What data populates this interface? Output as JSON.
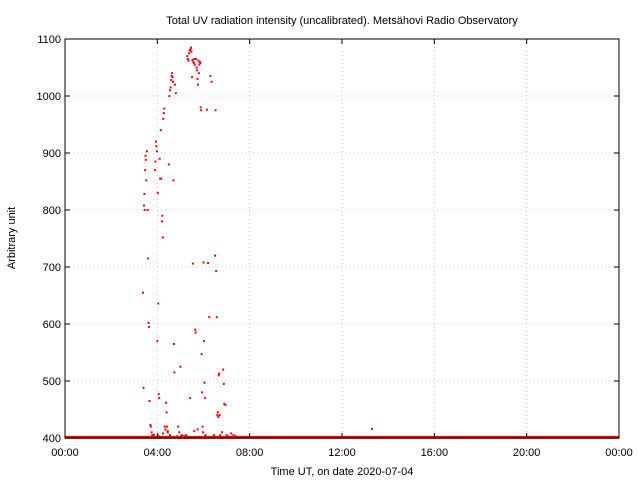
{
  "chart_data": {
    "type": "scatter",
    "title": "Total UV radiation intensity (uncalibrated). Metsähovi Radio Observatory",
    "xlabel": "Time UT, on date 2020-07-04",
    "ylabel": "Arbitrary unit",
    "x_unit": "hours",
    "xlim": [
      0,
      24
    ],
    "ylim": [
      400,
      1100
    ],
    "x_tick_labels": [
      "00:00",
      "04:00",
      "08:00",
      "12:00",
      "16:00",
      "20:00",
      "00:00"
    ],
    "y_ticks": [
      400,
      500,
      600,
      700,
      800,
      900,
      1000,
      1100
    ],
    "grid": true,
    "legend": "none",
    "color": "#ff0000",
    "baseline": {
      "value": 401,
      "from_hour": 0,
      "to_hour": 24
    },
    "points": [
      [
        3.38,
        655
      ],
      [
        3.4,
        488
      ],
      [
        3.42,
        808
      ],
      [
        3.44,
        828
      ],
      [
        3.45,
        800
      ],
      [
        3.47,
        870
      ],
      [
        3.49,
        895
      ],
      [
        3.5,
        888
      ],
      [
        3.52,
        852
      ],
      [
        3.55,
        903
      ],
      [
        3.58,
        800
      ],
      [
        3.6,
        715
      ],
      [
        3.62,
        602
      ],
      [
        3.64,
        595
      ],
      [
        3.66,
        465
      ],
      [
        3.7,
        423
      ],
      [
        3.72,
        420
      ],
      [
        3.75,
        410
      ],
      [
        3.78,
        405
      ],
      [
        3.82,
        403
      ],
      [
        3.9,
        870
      ],
      [
        3.92,
        885
      ],
      [
        3.94,
        920
      ],
      [
        3.96,
        912
      ],
      [
        3.98,
        903
      ],
      [
        4.0,
        570
      ],
      [
        4.02,
        830
      ],
      [
        4.04,
        636
      ],
      [
        4.06,
        477
      ],
      [
        4.08,
        470
      ],
      [
        4.1,
        890
      ],
      [
        4.12,
        855
      ],
      [
        4.15,
        940
      ],
      [
        4.17,
        855
      ],
      [
        4.2,
        780
      ],
      [
        4.22,
        790
      ],
      [
        4.24,
        752
      ],
      [
        4.26,
        960
      ],
      [
        4.28,
        970
      ],
      [
        4.3,
        978
      ],
      [
        4.32,
        420
      ],
      [
        4.35,
        415
      ],
      [
        4.38,
        462
      ],
      [
        4.4,
        445
      ],
      [
        4.42,
        420
      ],
      [
        4.45,
        410
      ],
      [
        4.5,
        880
      ],
      [
        4.52,
        1000
      ],
      [
        4.55,
        1010
      ],
      [
        4.58,
        1015
      ],
      [
        4.6,
        1028
      ],
      [
        4.62,
        1035
      ],
      [
        4.64,
        1040
      ],
      [
        4.66,
        1033
      ],
      [
        4.68,
        1025
      ],
      [
        4.7,
        852
      ],
      [
        4.72,
        565
      ],
      [
        4.74,
        515
      ],
      [
        4.76,
        1020
      ],
      [
        4.8,
        1005
      ],
      [
        4.9,
        420
      ],
      [
        4.95,
        410
      ],
      [
        5.0,
        525
      ],
      [
        5.05,
        405
      ],
      [
        5.1,
        403
      ],
      [
        5.15,
        403
      ],
      [
        5.2,
        403
      ],
      [
        5.25,
        405
      ],
      [
        5.3,
        1070
      ],
      [
        5.32,
        1065
      ],
      [
        5.35,
        1062
      ],
      [
        5.38,
        1075
      ],
      [
        5.4,
        1080
      ],
      [
        5.42,
        470
      ],
      [
        5.44,
        1082
      ],
      [
        5.46,
        1085
      ],
      [
        5.48,
        1078
      ],
      [
        5.5,
        1033
      ],
      [
        5.52,
        1063
      ],
      [
        5.54,
        706
      ],
      [
        5.56,
        1060
      ],
      [
        5.58,
        1058
      ],
      [
        5.6,
        1065
      ],
      [
        5.62,
        1055
      ],
      [
        5.64,
        590
      ],
      [
        5.66,
        585
      ],
      [
        5.68,
        1065
      ],
      [
        5.7,
        1050
      ],
      [
        5.72,
        1045
      ],
      [
        5.74,
        1030
      ],
      [
        5.76,
        1020
      ],
      [
        5.78,
        1062
      ],
      [
        5.8,
        1040
      ],
      [
        5.82,
        1055
      ],
      [
        5.84,
        1060
      ],
      [
        5.86,
        1058
      ],
      [
        5.88,
        980
      ],
      [
        5.9,
        975
      ],
      [
        5.92,
        547
      ],
      [
        5.94,
        480
      ],
      [
        5.96,
        420
      ],
      [
        5.98,
        410
      ],
      [
        6.0,
        708
      ],
      [
        6.02,
        570
      ],
      [
        6.04,
        497
      ],
      [
        6.06,
        470
      ],
      [
        6.08,
        405
      ],
      [
        6.1,
        403
      ],
      [
        6.15,
        976
      ],
      [
        6.2,
        707
      ],
      [
        6.25,
        612
      ],
      [
        6.3,
        1035
      ],
      [
        6.35,
        1025
      ],
      [
        6.4,
        402
      ],
      [
        6.45,
        405
      ],
      [
        6.5,
        720
      ],
      [
        6.52,
        975
      ],
      [
        6.55,
        693
      ],
      [
        6.58,
        612
      ],
      [
        6.6,
        440
      ],
      [
        6.62,
        445
      ],
      [
        6.64,
        437
      ],
      [
        6.66,
        510
      ],
      [
        6.68,
        513
      ],
      [
        6.7,
        440
      ],
      [
        6.72,
        405
      ],
      [
        6.75,
        402
      ],
      [
        6.8,
        410
      ],
      [
        6.85,
        520
      ],
      [
        6.88,
        495
      ],
      [
        6.9,
        460
      ],
      [
        6.95,
        458
      ],
      [
        7.0,
        405
      ],
      [
        7.05,
        403
      ],
      [
        7.1,
        402
      ],
      [
        7.2,
        408
      ],
      [
        7.3,
        405
      ],
      [
        7.4,
        403
      ],
      [
        7.6,
        402
      ],
      [
        7.8,
        402
      ],
      [
        9.5,
        402
      ],
      [
        13.3,
        416
      ],
      [
        4.85,
        403
      ],
      [
        5.6,
        412
      ],
      [
        4.55,
        405
      ],
      [
        4.45,
        412
      ],
      [
        3.85,
        406
      ],
      [
        4.05,
        404
      ],
      [
        4.25,
        408
      ],
      [
        5.75,
        415
      ]
    ]
  }
}
